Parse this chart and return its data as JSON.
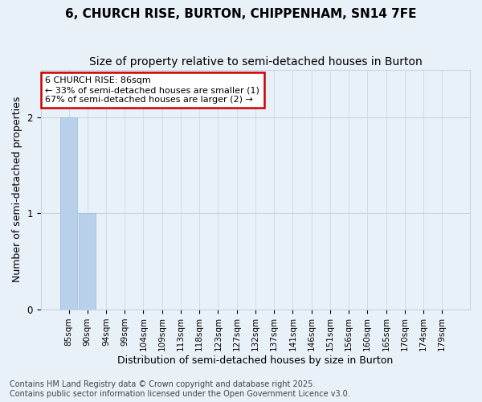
{
  "title_line1": "6, CHURCH RISE, BURTON, CHIPPENHAM, SN14 7FE",
  "title_line2": "Size of property relative to semi-detached houses in Burton",
  "xlabel": "Distribution of semi-detached houses by size in Burton",
  "ylabel": "Number of semi-detached properties",
  "categories": [
    "85sqm",
    "90sqm",
    "94sqm",
    "99sqm",
    "104sqm",
    "109sqm",
    "113sqm",
    "118sqm",
    "123sqm",
    "127sqm",
    "132sqm",
    "137sqm",
    "141sqm",
    "146sqm",
    "151sqm",
    "156sqm",
    "160sqm",
    "165sqm",
    "170sqm",
    "174sqm",
    "179sqm"
  ],
  "values": [
    2,
    1,
    0,
    0,
    0,
    0,
    0,
    0,
    0,
    0,
    0,
    0,
    0,
    0,
    0,
    0,
    0,
    0,
    0,
    0,
    0
  ],
  "bar_color": "#b8d0ea",
  "bar_edge_color": "#9ab8d8",
  "annotation_box_color": "#cc0000",
  "annotation_text_line1": "6 CHURCH RISE: 86sqm",
  "annotation_text_line2": "← 33% of semi-detached houses are smaller (1)",
  "annotation_text_line3": "67% of semi-detached houses are larger (2) →",
  "ylim": [
    0,
    2.5
  ],
  "yticks": [
    0,
    1,
    2
  ],
  "footer_line1": "Contains HM Land Registry data © Crown copyright and database right 2025.",
  "footer_line2": "Contains public sector information licensed under the Open Government Licence v3.0.",
  "background_color": "#e8f0f8",
  "plot_bg_color": "#e8f0f8",
  "grid_color": "#c8d4e4",
  "title_fontsize": 11,
  "subtitle_fontsize": 10,
  "label_fontsize": 9,
  "tick_fontsize": 7.5,
  "footer_fontsize": 7,
  "ann_fontsize": 8
}
